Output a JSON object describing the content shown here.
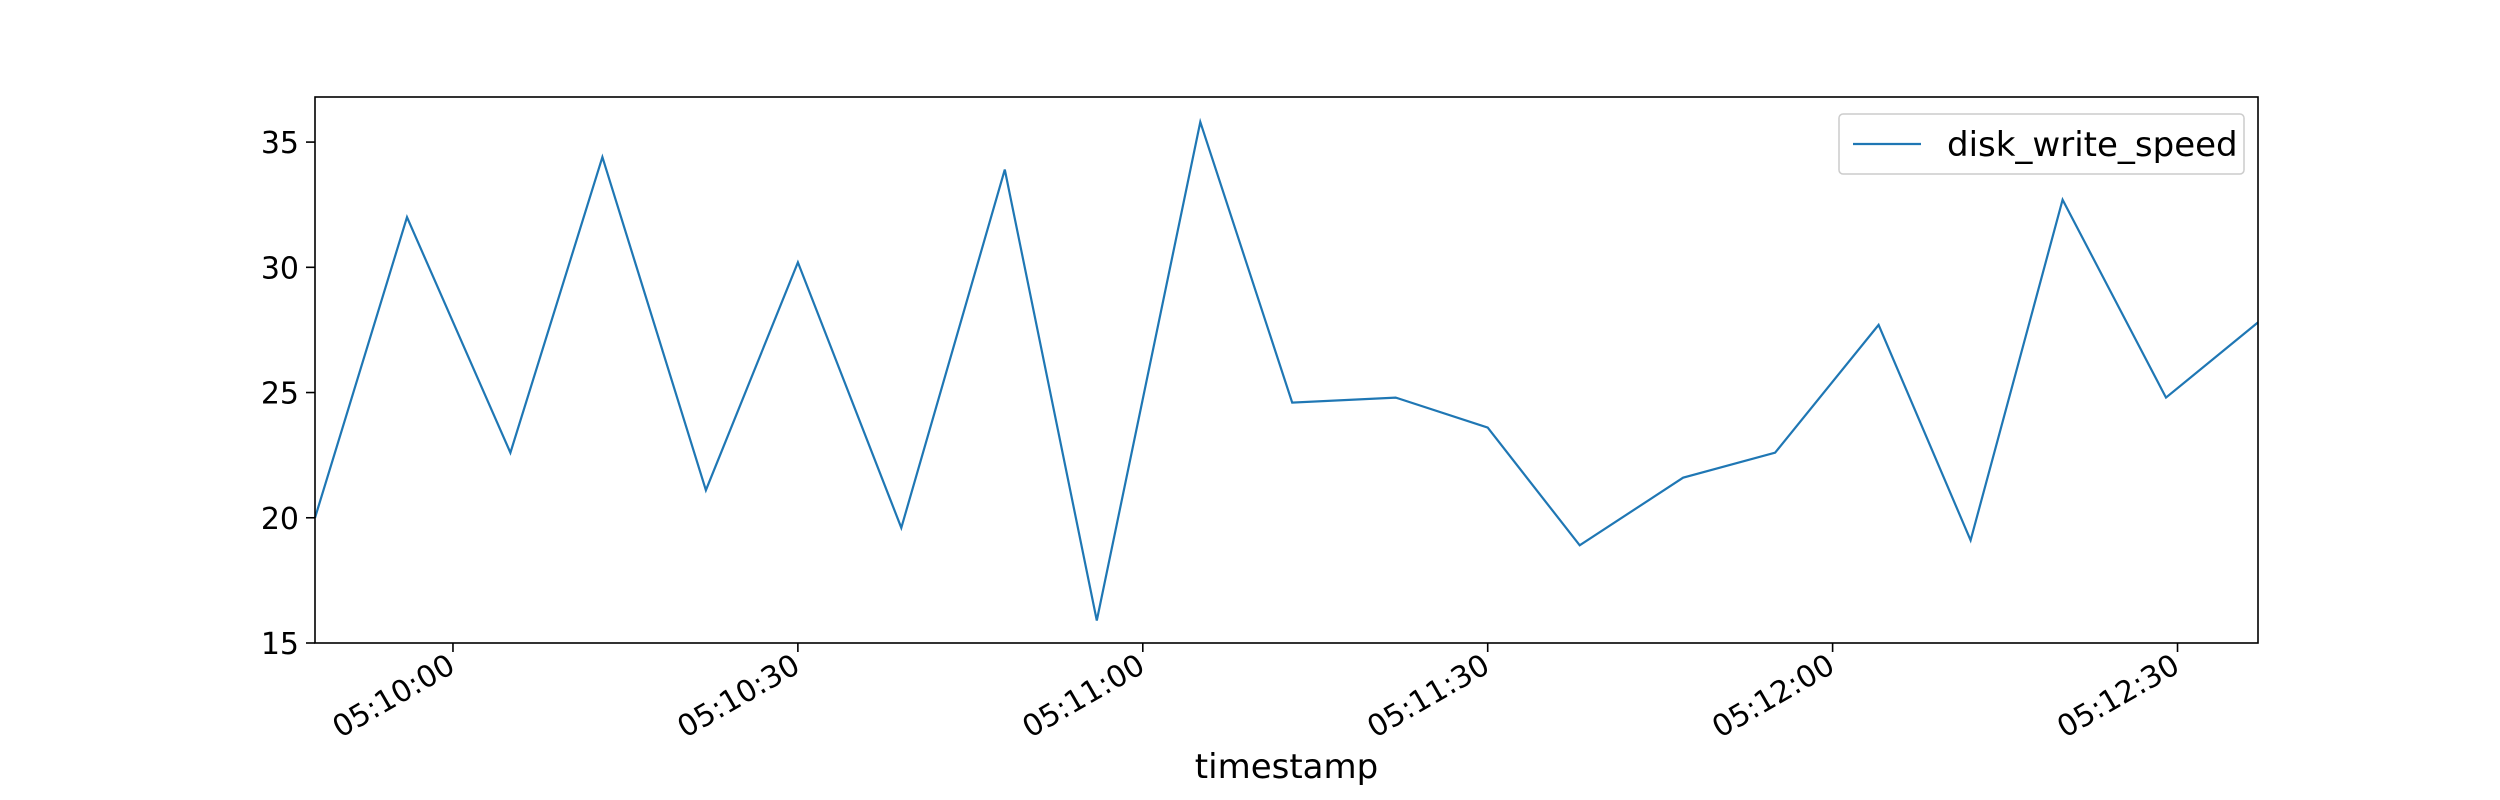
{
  "chart_data": {
    "type": "line",
    "title": "",
    "xlabel": "timestamp",
    "ylabel": "",
    "x_type": "time",
    "x_start": "05:09:48",
    "x_end": "05:12:37",
    "xlim": [
      "05:09:48",
      "05:12:37"
    ],
    "ylim": [
      15,
      36.8
    ],
    "x_ticks": [
      "05:10:00",
      "05:10:30",
      "05:11:00",
      "05:11:30",
      "05:12:00",
      "05:12:30"
    ],
    "y_ticks": [
      15,
      20,
      25,
      30,
      35
    ],
    "grid": false,
    "legend": {
      "position": "top-right",
      "entries": [
        "disk_write_speed"
      ]
    },
    "series": [
      {
        "name": "disk_write_speed",
        "color": "#1f77b4",
        "points": [
          [
            "05:09:48",
            20.0
          ],
          [
            "05:09:56",
            32.0
          ],
          [
            "05:10:05",
            22.6
          ],
          [
            "05:10:13",
            34.4
          ],
          [
            "05:10:22",
            21.1
          ],
          [
            "05:10:30",
            30.2
          ],
          [
            "05:10:39",
            19.6
          ],
          [
            "05:10:48",
            33.9
          ],
          [
            "05:10:56",
            15.9
          ],
          [
            "05:11:05",
            35.8
          ],
          [
            "05:11:13",
            24.6
          ],
          [
            "05:11:22",
            24.8
          ],
          [
            "05:11:30",
            23.6
          ],
          [
            "05:11:38",
            18.9
          ],
          [
            "05:11:47",
            21.6
          ],
          [
            "05:11:55",
            22.6
          ],
          [
            "05:12:04",
            27.7
          ],
          [
            "05:12:12",
            19.1
          ],
          [
            "05:12:20",
            32.7
          ],
          [
            "05:12:29",
            24.8
          ],
          [
            "05:12:37",
            27.8
          ]
        ]
      }
    ]
  }
}
